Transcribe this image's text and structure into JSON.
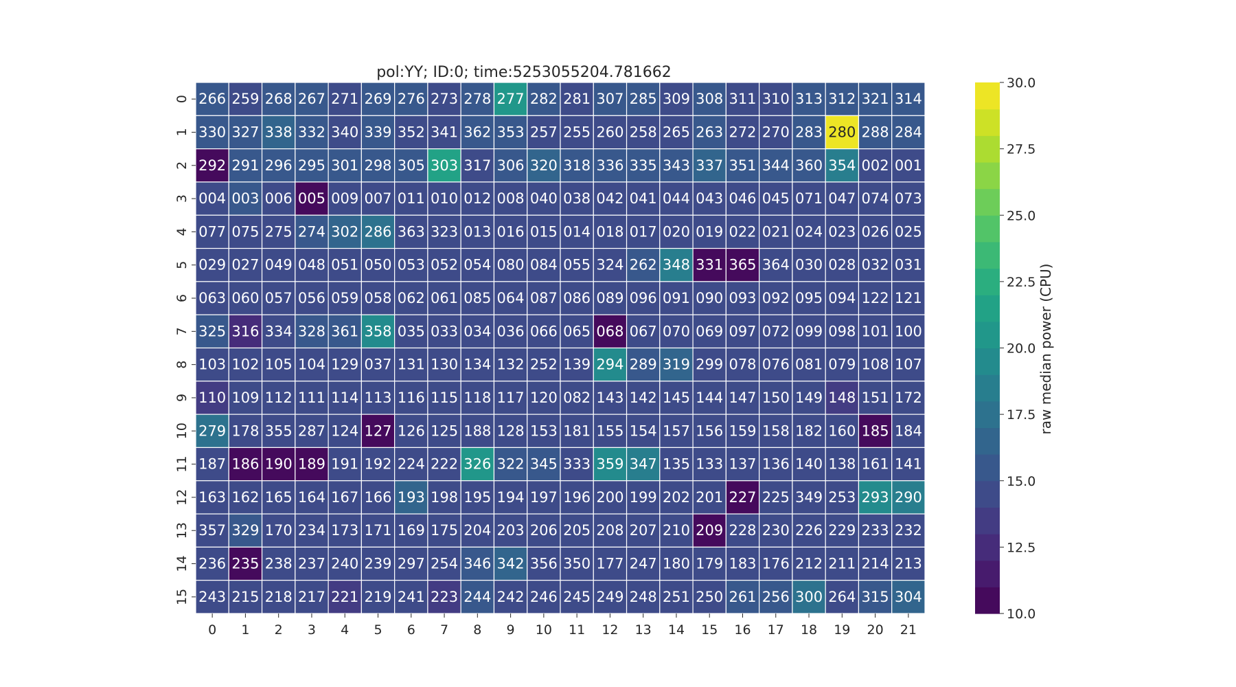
{
  "chart_data": {
    "type": "heatmap",
    "title": "pol:YY; ID:0; time:5253055204.781662",
    "colorbar": {
      "label": "raw median power (CPU)",
      "range": [
        10.0,
        30.0
      ],
      "ticks": [
        "10.0",
        "12.5",
        "15.0",
        "17.5",
        "20.0",
        "22.5",
        "25.0",
        "27.5",
        "30.0"
      ],
      "colormap": "viridis"
    },
    "x_ticks": [
      "0",
      "1",
      "2",
      "3",
      "4",
      "5",
      "6",
      "7",
      "8",
      "9",
      "10",
      "11",
      "12",
      "13",
      "14",
      "15",
      "16",
      "17",
      "18",
      "19",
      "20",
      "21"
    ],
    "y_ticks": [
      "0",
      "1",
      "2",
      "3",
      "4",
      "5",
      "6",
      "7",
      "8",
      "9",
      "10",
      "11",
      "12",
      "13",
      "14",
      "15"
    ],
    "annotations": [
      [
        "266",
        "259",
        "268",
        "267",
        "271",
        "269",
        "276",
        "273",
        "278",
        "277",
        "282",
        "281",
        "307",
        "285",
        "309",
        "308",
        "311",
        "310",
        "313",
        "312",
        "321",
        "314"
      ],
      [
        "330",
        "327",
        "338",
        "332",
        "340",
        "339",
        "352",
        "341",
        "362",
        "353",
        "257",
        "255",
        "260",
        "258",
        "265",
        "263",
        "272",
        "270",
        "283",
        "280",
        "288",
        "284"
      ],
      [
        "292",
        "291",
        "296",
        "295",
        "301",
        "298",
        "305",
        "303",
        "317",
        "306",
        "320",
        "318",
        "336",
        "335",
        "343",
        "337",
        "351",
        "344",
        "360",
        "354",
        "002",
        "001"
      ],
      [
        "004",
        "003",
        "006",
        "005",
        "009",
        "007",
        "011",
        "010",
        "012",
        "008",
        "040",
        "038",
        "042",
        "041",
        "044",
        "043",
        "046",
        "045",
        "071",
        "047",
        "074",
        "073"
      ],
      [
        "077",
        "075",
        "275",
        "274",
        "302",
        "286",
        "363",
        "323",
        "013",
        "016",
        "015",
        "014",
        "018",
        "017",
        "020",
        "019",
        "022",
        "021",
        "024",
        "023",
        "026",
        "025"
      ],
      [
        "029",
        "027",
        "049",
        "048",
        "051",
        "050",
        "053",
        "052",
        "054",
        "080",
        "084",
        "055",
        "324",
        "262",
        "348",
        "331",
        "365",
        "364",
        "030",
        "028",
        "032",
        "031"
      ],
      [
        "063",
        "060",
        "057",
        "056",
        "059",
        "058",
        "062",
        "061",
        "085",
        "064",
        "087",
        "086",
        "089",
        "096",
        "091",
        "090",
        "093",
        "092",
        "095",
        "094",
        "122",
        "121"
      ],
      [
        "325",
        "316",
        "334",
        "328",
        "361",
        "358",
        "035",
        "033",
        "034",
        "036",
        "066",
        "065",
        "068",
        "067",
        "070",
        "069",
        "097",
        "072",
        "099",
        "098",
        "101",
        "100"
      ],
      [
        "103",
        "102",
        "105",
        "104",
        "129",
        "037",
        "131",
        "130",
        "134",
        "132",
        "252",
        "139",
        "294",
        "289",
        "319",
        "299",
        "078",
        "076",
        "081",
        "079",
        "108",
        "107"
      ],
      [
        "110",
        "109",
        "112",
        "111",
        "114",
        "113",
        "116",
        "115",
        "118",
        "117",
        "120",
        "082",
        "143",
        "142",
        "145",
        "144",
        "147",
        "150",
        "149",
        "148",
        "151",
        "172"
      ],
      [
        "279",
        "178",
        "355",
        "287",
        "124",
        "127",
        "126",
        "125",
        "188",
        "128",
        "153",
        "181",
        "155",
        "154",
        "157",
        "156",
        "159",
        "158",
        "182",
        "160",
        "185",
        "184"
      ],
      [
        "187",
        "186",
        "190",
        "189",
        "191",
        "192",
        "224",
        "222",
        "326",
        "322",
        "345",
        "333",
        "359",
        "347",
        "135",
        "133",
        "137",
        "136",
        "140",
        "138",
        "161",
        "141"
      ],
      [
        "163",
        "162",
        "165",
        "164",
        "167",
        "166",
        "193",
        "198",
        "195",
        "194",
        "197",
        "196",
        "200",
        "199",
        "202",
        "201",
        "227",
        "225",
        "349",
        "253",
        "293",
        "290"
      ],
      [
        "357",
        "329",
        "170",
        "234",
        "173",
        "171",
        "169",
        "175",
        "204",
        "203",
        "206",
        "205",
        "208",
        "207",
        "210",
        "209",
        "228",
        "230",
        "226",
        "229",
        "233",
        "232"
      ],
      [
        "236",
        "235",
        "238",
        "237",
        "240",
        "239",
        "297",
        "254",
        "346",
        "342",
        "356",
        "350",
        "177",
        "247",
        "180",
        "179",
        "183",
        "176",
        "212",
        "211",
        "214",
        "213"
      ],
      [
        "243",
        "215",
        "218",
        "217",
        "221",
        "219",
        "241",
        "223",
        "244",
        "242",
        "246",
        "245",
        "249",
        "248",
        "251",
        "250",
        "261",
        "256",
        "300",
        "264",
        "315",
        "304"
      ]
    ],
    "values": [
      [
        15.4,
        14.7,
        15.3,
        15.5,
        14.8,
        15.9,
        15.2,
        14.5,
        15.2,
        20.5,
        15.3,
        14.6,
        15.0,
        15.0,
        14.7,
        15.4,
        14.8,
        14.0,
        15.6,
        15.3,
        15.4,
        15.8
      ],
      [
        15.8,
        15.2,
        16.2,
        15.3,
        14.8,
        15.2,
        14.2,
        14.8,
        15.5,
        15.6,
        14.4,
        14.0,
        14.3,
        14.2,
        14.3,
        15.2,
        14.6,
        14.3,
        15.4,
        29.5,
        15.5,
        15.7
      ],
      [
        10.2,
        15.2,
        15.5,
        15.5,
        15.6,
        15.7,
        15.7,
        21.6,
        14.9,
        15.4,
        16.1,
        15.0,
        15.9,
        15.5,
        15.9,
        16.1,
        15.2,
        15.5,
        15.3,
        18.5,
        14.3,
        14.4
      ],
      [
        14.6,
        15.3,
        14.4,
        10.4,
        14.3,
        14.8,
        14.6,
        14.5,
        14.4,
        14.7,
        14.6,
        14.6,
        14.8,
        14.4,
        14.4,
        14.4,
        14.5,
        14.3,
        14.6,
        14.1,
        14.6,
        14.3
      ],
      [
        14.3,
        14.5,
        14.5,
        15.2,
        16.6,
        17.5,
        14.9,
        14.8,
        14.1,
        14.4,
        14.6,
        14.2,
        14.3,
        14.6,
        14.4,
        14.3,
        14.6,
        14.4,
        14.7,
        14.4,
        14.5,
        14.5
      ],
      [
        14.7,
        14.6,
        14.5,
        14.5,
        14.6,
        14.5,
        14.4,
        14.5,
        14.5,
        14.7,
        14.5,
        14.5,
        14.7,
        15.1,
        18.0,
        10.8,
        10.5,
        14.2,
        14.6,
        14.5,
        14.5,
        14.4
      ],
      [
        14.3,
        14.3,
        14.5,
        14.5,
        14.5,
        14.3,
        14.3,
        14.6,
        14.6,
        14.6,
        14.5,
        14.5,
        14.5,
        14.6,
        14.3,
        14.6,
        14.3,
        14.4,
        14.6,
        14.3,
        14.3,
        14.6
      ],
      [
        15.1,
        12.7,
        14.9,
        15.4,
        15.0,
        19.6,
        14.6,
        14.5,
        14.7,
        14.6,
        14.6,
        14.5,
        10.3,
        14.5,
        14.6,
        14.3,
        14.5,
        14.4,
        14.6,
        14.5,
        14.7,
        14.7
      ],
      [
        14.5,
        14.6,
        14.7,
        14.7,
        14.6,
        14.7,
        14.5,
        14.6,
        14.5,
        14.6,
        14.6,
        14.7,
        19.8,
        15.4,
        16.9,
        14.7,
        14.4,
        14.4,
        14.6,
        14.5,
        14.6,
        14.5
      ],
      [
        13.6,
        14.3,
        14.2,
        14.3,
        14.6,
        14.4,
        14.3,
        14.5,
        14.4,
        14.5,
        14.3,
        14.3,
        14.5,
        14.5,
        14.4,
        14.4,
        14.4,
        14.4,
        14.4,
        13.3,
        14.4,
        14.3
      ],
      [
        17.8,
        14.6,
        14.6,
        14.6,
        14.4,
        10.3,
        14.4,
        14.4,
        14.5,
        14.4,
        14.6,
        14.4,
        14.5,
        14.4,
        14.4,
        14.4,
        14.3,
        14.6,
        14.4,
        14.6,
        10.6,
        14.4
      ],
      [
        14.3,
        10.5,
        10.7,
        10.8,
        14.4,
        14.4,
        14.4,
        14.5,
        20.7,
        15.3,
        15.0,
        14.9,
        19.2,
        18.3,
        14.5,
        14.4,
        14.4,
        14.4,
        14.5,
        14.3,
        14.5,
        14.4
      ],
      [
        14.6,
        14.6,
        14.6,
        14.4,
        14.5,
        14.5,
        16.3,
        14.4,
        14.4,
        14.5,
        14.5,
        14.3,
        14.6,
        14.5,
        14.4,
        14.4,
        10.7,
        14.3,
        14.8,
        14.3,
        19.8,
        18.9
      ],
      [
        14.8,
        15.0,
        14.5,
        14.3,
        14.4,
        14.6,
        14.5,
        14.5,
        14.5,
        14.5,
        14.6,
        14.4,
        14.5,
        14.3,
        14.6,
        10.5,
        14.4,
        14.5,
        14.4,
        14.4,
        14.4,
        14.4
      ],
      [
        14.4,
        10.3,
        14.7,
        14.3,
        14.6,
        14.5,
        14.7,
        14.4,
        15.0,
        16.7,
        14.9,
        14.7,
        14.4,
        14.6,
        14.3,
        14.7,
        14.3,
        14.5,
        14.5,
        14.6,
        14.3,
        14.4
      ],
      [
        14.6,
        14.3,
        14.5,
        14.3,
        13.6,
        14.5,
        14.9,
        13.9,
        15.9,
        14.5,
        14.8,
        14.6,
        14.6,
        14.4,
        14.4,
        14.5,
        15.1,
        15.3,
        17.9,
        14.6,
        15.8,
        16.1
      ]
    ]
  }
}
